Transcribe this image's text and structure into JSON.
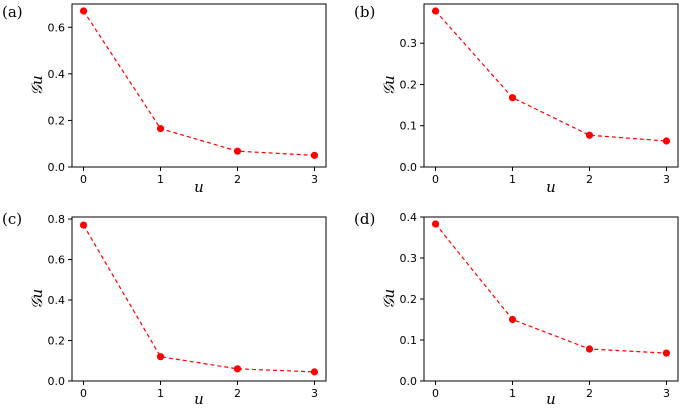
{
  "chart_data": [
    {
      "type": "line",
      "panel_label": "(a)",
      "xlabel": "u",
      "ylabel": "𝒢u",
      "x": [
        0,
        1,
        2,
        3
      ],
      "values": [
        0.67,
        0.165,
        0.068,
        0.05
      ],
      "xlim": [
        -0.15,
        3.15
      ],
      "ylim": [
        0,
        0.7
      ],
      "yticks": [
        0.0,
        0.2,
        0.4,
        0.6
      ],
      "ytick_labels": [
        "0.0",
        "0.2",
        "0.4",
        "0.6"
      ],
      "xticks": [
        0,
        1,
        2,
        3
      ],
      "xtick_labels": [
        "0",
        "1",
        "2",
        "3"
      ],
      "color": "#ff0000",
      "grid": false
    },
    {
      "type": "line",
      "panel_label": "(b)",
      "xlabel": "u",
      "ylabel": "𝒢u",
      "x": [
        0,
        1,
        2,
        3
      ],
      "values": [
        0.378,
        0.168,
        0.077,
        0.063
      ],
      "xlim": [
        -0.15,
        3.15
      ],
      "ylim": [
        0,
        0.395
      ],
      "yticks": [
        0.0,
        0.1,
        0.2,
        0.3
      ],
      "ytick_labels": [
        "0.0",
        "0.1",
        "0.2",
        "0.3"
      ],
      "xticks": [
        0,
        1,
        2,
        3
      ],
      "xtick_labels": [
        "0",
        "1",
        "2",
        "3"
      ],
      "color": "#ff0000",
      "grid": false
    },
    {
      "type": "line",
      "panel_label": "(c)",
      "xlabel": "u",
      "ylabel": "𝒢u",
      "x": [
        0,
        1,
        2,
        3
      ],
      "values": [
        0.77,
        0.12,
        0.06,
        0.045
      ],
      "xlim": [
        -0.15,
        3.15
      ],
      "ylim": [
        0,
        0.81
      ],
      "yticks": [
        0.0,
        0.2,
        0.4,
        0.6,
        0.8
      ],
      "ytick_labels": [
        "0.0",
        "0.2",
        "0.4",
        "0.6",
        "0.8"
      ],
      "xticks": [
        0,
        1,
        2,
        3
      ],
      "xtick_labels": [
        "0",
        "1",
        "2",
        "3"
      ],
      "color": "#ff0000",
      "grid": false
    },
    {
      "type": "line",
      "panel_label": "(d)",
      "xlabel": "u",
      "ylabel": "𝒢u",
      "x": [
        0,
        1,
        2,
        3
      ],
      "values": [
        0.383,
        0.15,
        0.078,
        0.068
      ],
      "xlim": [
        -0.15,
        3.15
      ],
      "ylim": [
        0,
        0.4
      ],
      "yticks": [
        0.0,
        0.1,
        0.2,
        0.3,
        0.4
      ],
      "ytick_labels": [
        "0.0",
        "0.1",
        "0.2",
        "0.3",
        "0.4"
      ],
      "xticks": [
        0,
        1,
        2,
        3
      ],
      "xtick_labels": [
        "0",
        "1",
        "2",
        "3"
      ],
      "color": "#ff0000",
      "grid": false
    }
  ]
}
